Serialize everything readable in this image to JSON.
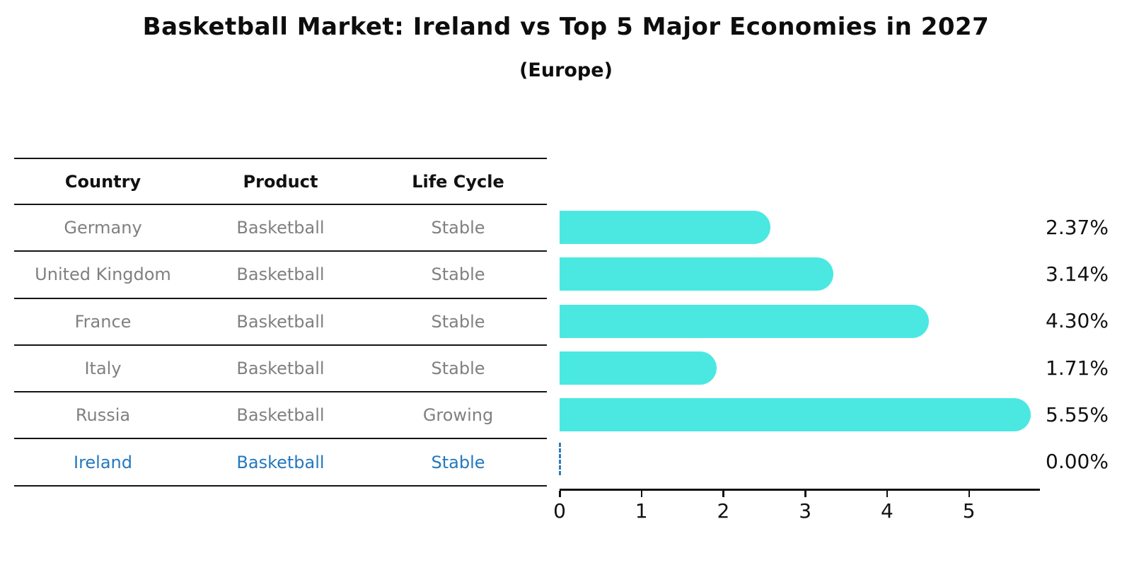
{
  "title": "Basketball Market: Ireland vs Top 5 Major Economies in 2027",
  "subtitle": "(Europe)",
  "table": {
    "headers": [
      "Country",
      "Product",
      "Life Cycle"
    ],
    "rows": [
      {
        "country": "Germany",
        "product": "Basketball",
        "life_cycle": "Stable"
      },
      {
        "country": "United Kingdom",
        "product": "Basketball",
        "life_cycle": "Stable"
      },
      {
        "country": "France",
        "product": "Basketball",
        "life_cycle": "Stable"
      },
      {
        "country": "Italy",
        "product": "Basketball",
        "life_cycle": "Stable"
      },
      {
        "country": "Russia",
        "product": "Basketball",
        "life_cycle": "Growing"
      },
      {
        "country": "Ireland",
        "product": "Basketball",
        "life_cycle": "Stable"
      }
    ],
    "highlighted_row": "Ireland"
  },
  "chart_data": {
    "type": "bar",
    "orientation": "horizontal",
    "title": "Basketball Market: Ireland vs Top 5 Major Economies in 2027",
    "subtitle": "(Europe)",
    "categories": [
      "Germany",
      "United Kingdom",
      "France",
      "Italy",
      "Russia",
      "Ireland"
    ],
    "values": [
      2.37,
      3.14,
      4.3,
      1.71,
      5.55,
      0.0
    ],
    "value_labels": [
      "2.37%",
      "3.14%",
      "4.30%",
      "1.71%",
      "5.55%",
      "0.00%"
    ],
    "xticks": [
      0,
      1,
      2,
      3,
      4,
      5
    ],
    "xlim": [
      0,
      5.85
    ],
    "xlabel": "",
    "ylabel": "",
    "grid": false,
    "legend": "none",
    "bar_color": "#4be8e2",
    "highlight_color": "#2478be",
    "zero_marker": "dashed-blue-line-at-0"
  }
}
